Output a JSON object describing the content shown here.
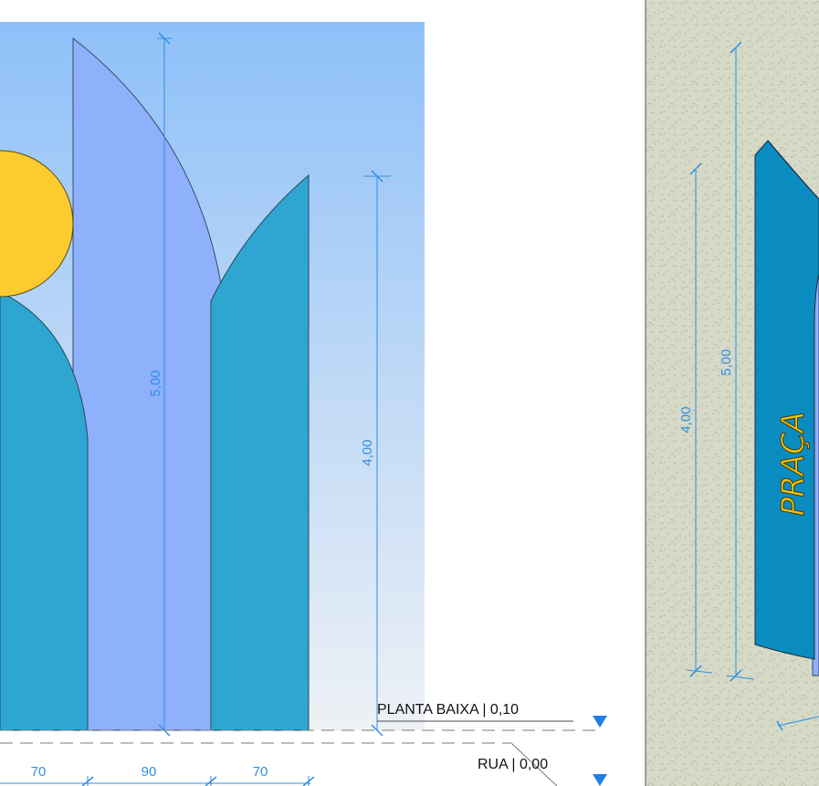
{
  "elevation": {
    "dimensions": {
      "tall_height": "5,00",
      "short_height": "4,00",
      "width_left": "70",
      "width_middle": "90",
      "width_right": "70"
    },
    "levels": [
      {
        "label": "PLANTA BAIXA | 0,10"
      },
      {
        "label": "RUA | 0,00"
      }
    ]
  },
  "side_view": {
    "sign_text": "PRAÇA",
    "dimensions": {
      "short_height": "4,00",
      "tall_height": "5,00"
    }
  },
  "colors": {
    "sky_top": "#8ec0f8",
    "sky_bottom": "#eef1f5",
    "sun": "#fccb2f",
    "panel_teal": "#2fa6d1",
    "panel_lilac": "#8fb0fb",
    "dimension_blue": "#2f8fe6",
    "ground": "#d4d8c4",
    "level_marker": "#1e7fe6"
  }
}
